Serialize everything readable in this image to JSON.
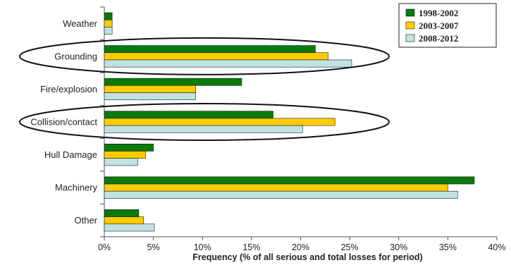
{
  "chart_data": {
    "type": "bar",
    "orientation": "horizontal",
    "categories": [
      "Weather",
      "Grounding",
      "Fire/explosion",
      "Collision/contact",
      "Hull Damage",
      "Machinery",
      "Other"
    ],
    "series": [
      {
        "name": "1998-2002",
        "color": "#0a7a0a",
        "values": [
          0.8,
          21.5,
          14.0,
          17.2,
          5.0,
          37.7,
          3.5
        ]
      },
      {
        "name": "2003-2007",
        "color": "#ffcc00",
        "values": [
          0.8,
          22.8,
          9.3,
          23.5,
          4.2,
          35.0,
          4.0
        ]
      },
      {
        "name": "2008-2012",
        "color": "#bfe3e3",
        "values": [
          0.8,
          25.2,
          9.3,
          20.2,
          3.4,
          36.0,
          5.1
        ]
      }
    ],
    "xlim": [
      0,
      40
    ],
    "xticks": [
      "0%",
      "5%",
      "10%",
      "15%",
      "20%",
      "25%",
      "30%",
      "35%",
      "40%"
    ],
    "xlabel": "Frequency (% of all serious and total losses for period)",
    "ylabel": "",
    "title": "",
    "legend_position": "top-right",
    "highlighted_categories": [
      "Grounding",
      "Collision/contact"
    ]
  }
}
